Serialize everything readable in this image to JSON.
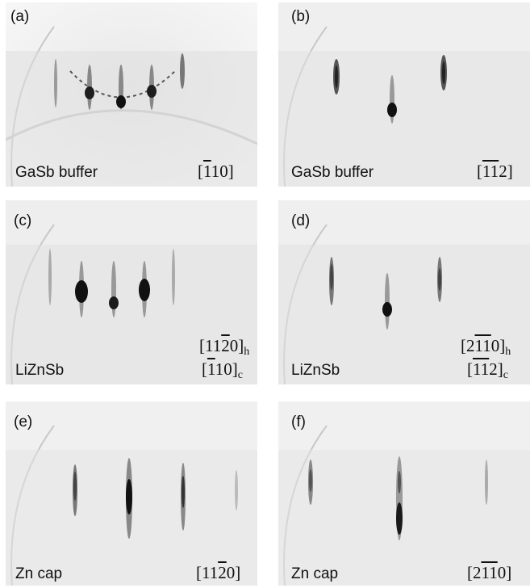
{
  "panels": [
    {
      "id": "a",
      "letter": "(a)",
      "material": "GaSb buffer",
      "dir1": {
        "pre": "[",
        "ol": "1",
        "post": "10]",
        "sub": ""
      },
      "dir2": null
    },
    {
      "id": "b",
      "letter": "(b)",
      "material": "GaSb buffer",
      "dir1": {
        "pre": "[",
        "ol": "11",
        "post": "2]",
        "sub": ""
      },
      "dir2": null
    },
    {
      "id": "c",
      "letter": "(c)",
      "material": "LiZnSb",
      "dir1": {
        "pre": "[11",
        "ol": "2",
        "post": "0]",
        "sub": "h"
      },
      "dir2": {
        "pre": "[",
        "ol": "1",
        "post": "10]",
        "sub": "c"
      }
    },
    {
      "id": "d",
      "letter": "(d)",
      "material": "LiZnSb",
      "dir1": {
        "pre": "[2",
        "ol": "11",
        "post": "0]",
        "sub": "h"
      },
      "dir2": {
        "pre": "[",
        "ol": "11",
        "post": "2]",
        "sub": "c"
      }
    },
    {
      "id": "e",
      "letter": "(e)",
      "material": "Zn cap",
      "dir1": {
        "pre": "[11",
        "ol": "2",
        "post": "0]",
        "sub": ""
      },
      "dir2": null
    },
    {
      "id": "f",
      "letter": "(f)",
      "material": "Zn cap",
      "dir1": {
        "pre": "[2",
        "ol": "11",
        "post": "0]",
        "sub": ""
      },
      "dir2": null
    }
  ]
}
